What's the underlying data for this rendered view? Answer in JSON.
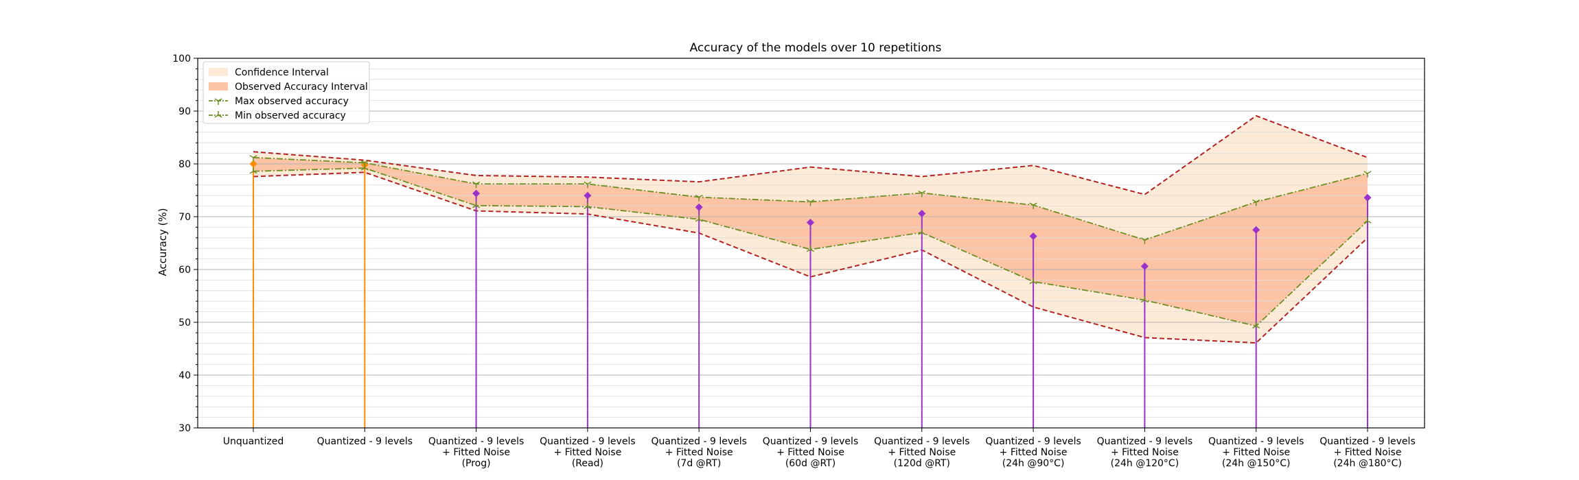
{
  "chart_data": {
    "type": "line",
    "title": "Accuracy of the models over 10 repetitions",
    "xlabel": "",
    "ylabel": "Accuracy (%)",
    "ylim": [
      30,
      100
    ],
    "yticks": [
      30,
      40,
      50,
      60,
      70,
      80,
      90,
      100
    ],
    "grid": true,
    "legend_position": "top-left",
    "categories": [
      [
        "Unquantized"
      ],
      [
        "Quantized - 9 levels"
      ],
      [
        "Quantized - 9 levels",
        "+ Fitted Noise",
        "(Prog)"
      ],
      [
        "Quantized - 9 levels",
        "+ Fitted Noise",
        "(Read)"
      ],
      [
        "Quantized - 9 levels",
        "+ Fitted Noise",
        "(7d @RT)"
      ],
      [
        "Quantized - 9 levels",
        "+ Fitted Noise",
        "(60d @RT)"
      ],
      [
        "Quantized - 9 levels",
        "+ Fitted Noise",
        "(120d @RT)"
      ],
      [
        "Quantized - 9 levels",
        "+ Fitted Noise",
        "(24h @90°C)"
      ],
      [
        "Quantized - 9 levels",
        "+ Fitted Noise",
        "(24h @120°C)"
      ],
      [
        "Quantized - 9 levels",
        "+ Fitted Noise",
        "(24h @150°C)"
      ],
      [
        "Quantized - 9 levels",
        "+ Fitted Noise",
        "(24h @180°C)"
      ]
    ],
    "mean_accuracy": [
      80.0,
      79.8,
      74.4,
      74.0,
      71.8,
      68.9,
      70.6,
      66.3,
      60.6,
      67.5,
      73.6
    ],
    "mean_marker_colors": [
      "#ff8c00",
      "#ff8c00",
      "#9932cc",
      "#9932cc",
      "#9932cc",
      "#9932cc",
      "#9932cc",
      "#9932cc",
      "#9932cc",
      "#9932cc",
      "#9932cc"
    ],
    "confidence_interval": {
      "upper": [
        82.3,
        80.7,
        77.8,
        77.5,
        76.6,
        79.4,
        77.6,
        79.7,
        74.2,
        89.1,
        81.2
      ],
      "lower": [
        77.6,
        78.4,
        71.1,
        70.5,
        66.9,
        58.6,
        63.7,
        52.9,
        47.1,
        46.1,
        66.0
      ]
    },
    "series": [
      {
        "name": "Confidence Interval",
        "kind": "band",
        "color": "#fdebd8"
      },
      {
        "name": "Observed Accuracy Interval",
        "kind": "band",
        "color": "#fdc3a5"
      },
      {
        "name": "Max observed accuracy",
        "kind": "line",
        "color": "#6b8e23",
        "values": [
          81.2,
          80.2,
          76.2,
          76.2,
          73.7,
          72.8,
          74.5,
          72.2,
          65.6,
          72.8,
          78.2
        ]
      },
      {
        "name": "Min observed accuracy",
        "kind": "line",
        "color": "#6b8e23",
        "values": [
          78.6,
          79.2,
          72.1,
          71.9,
          69.5,
          63.8,
          67.0,
          57.7,
          54.2,
          49.3,
          69.2
        ]
      }
    ],
    "colors": {
      "ci_line": "#b22222",
      "ci_fill": "#fdebd8",
      "observed_fill": "#fdc3a5",
      "minmax_line": "#6b8e23",
      "stem_orange": "#ff8c00",
      "stem_purple": "#9932cc",
      "grid_major": "#b0b0b0",
      "grid_minor": "#dcdcdc"
    }
  }
}
